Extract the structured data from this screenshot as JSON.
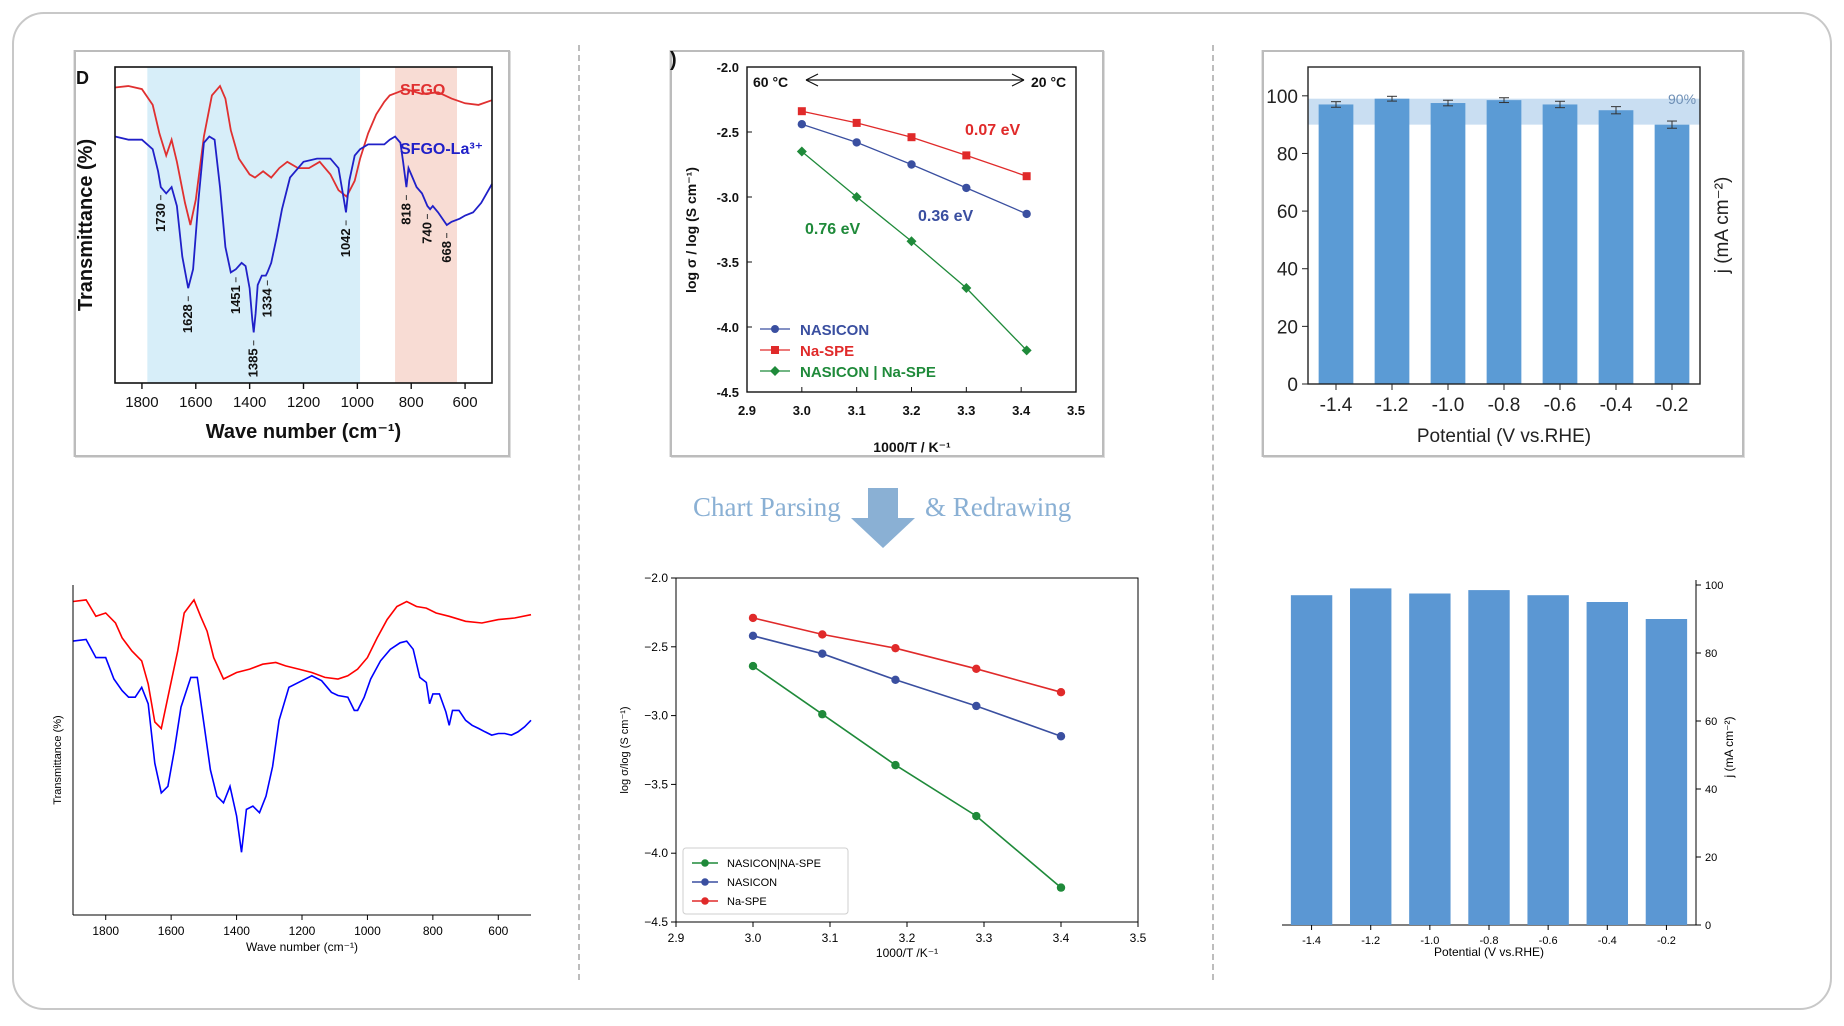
{
  "process": {
    "left_label": "Chart Parsing",
    "right_label": "& Redrawing",
    "arrow_color": "#8ab0d4"
  },
  "chart_data": [
    {
      "id": "ftir-original",
      "type": "line",
      "panel_letter": "D",
      "xlabel": "Wave number (cm⁻¹)",
      "ylabel": "Transmittance (%)",
      "xlim": [
        1900,
        500
      ],
      "xticks": [
        1800,
        1600,
        1400,
        1200,
        1000,
        800,
        600
      ],
      "x_tick_labels": [
        "1800",
        "1600",
        "1400",
        "1200",
        "1000",
        "800",
        "600"
      ],
      "shaded_regions": [
        {
          "range": [
            1780,
            990
          ],
          "color": "#d7eef9"
        },
        {
          "range": [
            860,
            630
          ],
          "color": "#f8dcd4"
        }
      ],
      "series": [
        {
          "name": "SFGO",
          "color": "#e03030",
          "x": [
            1900,
            1850,
            1800,
            1760,
            1735,
            1710,
            1690,
            1670,
            1640,
            1620,
            1600,
            1570,
            1540,
            1510,
            1490,
            1470,
            1440,
            1400,
            1380,
            1350,
            1320,
            1290,
            1260,
            1220,
            1180,
            1140,
            1100,
            1070,
            1040,
            1010,
            990,
            960,
            930,
            900,
            880,
            850,
            820,
            800,
            760,
            700,
            650,
            600,
            550,
            500
          ],
          "y": [
            0.935,
            0.94,
            0.93,
            0.88,
            0.79,
            0.72,
            0.77,
            0.7,
            0.57,
            0.5,
            0.58,
            0.78,
            0.91,
            0.94,
            0.9,
            0.8,
            0.71,
            0.66,
            0.65,
            0.67,
            0.65,
            0.68,
            0.7,
            0.68,
            0.68,
            0.7,
            0.66,
            0.61,
            0.59,
            0.64,
            0.71,
            0.79,
            0.85,
            0.89,
            0.91,
            0.92,
            0.93,
            0.925,
            0.915,
            0.92,
            0.9,
            0.885,
            0.88,
            0.895
          ]
        },
        {
          "name": "SFGO-La³⁺",
          "color": "#2020c8",
          "x": [
            1900,
            1850,
            1800,
            1760,
            1740,
            1730,
            1710,
            1690,
            1670,
            1650,
            1628,
            1610,
            1590,
            1570,
            1550,
            1530,
            1510,
            1490,
            1470,
            1451,
            1430,
            1415,
            1400,
            1390,
            1385,
            1378,
            1370,
            1355,
            1340,
            1334,
            1320,
            1300,
            1280,
            1250,
            1200,
            1150,
            1100,
            1070,
            1050,
            1042,
            1030,
            1010,
            990,
            960,
            930,
            900,
            880,
            860,
            840,
            830,
            818,
            810,
            800,
            780,
            760,
            740,
            730,
            720,
            700,
            680,
            668,
            650,
            620,
            600,
            570,
            540,
            520,
            500
          ],
          "y": [
            0.78,
            0.77,
            0.77,
            0.74,
            0.67,
            0.62,
            0.6,
            0.62,
            0.56,
            0.4,
            0.3,
            0.36,
            0.58,
            0.76,
            0.78,
            0.77,
            0.62,
            0.43,
            0.35,
            0.36,
            0.38,
            0.37,
            0.3,
            0.2,
            0.16,
            0.22,
            0.31,
            0.34,
            0.34,
            0.35,
            0.38,
            0.46,
            0.55,
            0.65,
            0.7,
            0.71,
            0.71,
            0.68,
            0.58,
            0.54,
            0.64,
            0.72,
            0.74,
            0.755,
            0.755,
            0.755,
            0.77,
            0.78,
            0.76,
            0.7,
            0.62,
            0.68,
            0.66,
            0.62,
            0.6,
            0.56,
            0.55,
            0.56,
            0.54,
            0.515,
            0.5,
            0.51,
            0.52,
            0.53,
            0.54,
            0.57,
            0.6,
            0.63
          ]
        }
      ],
      "legend": [
        "SFGO",
        "SFGO-La³⁺"
      ],
      "annotations": [
        {
          "text": "1730",
          "x": 1730,
          "y": 0.62
        },
        {
          "text": "1628",
          "x": 1628,
          "y": 0.3
        },
        {
          "text": "1451",
          "x": 1451,
          "y": 0.36
        },
        {
          "text": "1385",
          "x": 1385,
          "y": 0.16
        },
        {
          "text": "1334",
          "x": 1334,
          "y": 0.35
        },
        {
          "text": "1042",
          "x": 1042,
          "y": 0.54
        },
        {
          "text": "818",
          "x": 818,
          "y": 0.62
        },
        {
          "text": "740",
          "x": 740,
          "y": 0.56
        },
        {
          "text": "668",
          "x": 668,
          "y": 0.5
        }
      ]
    },
    {
      "id": "arrhenius-original",
      "type": "line",
      "panel_letter": ")",
      "xlabel": "1000/T / K⁻¹",
      "ylabel": "log σ / log (S cm⁻¹)",
      "xlim": [
        2.9,
        3.5
      ],
      "ylim": [
        -4.5,
        -2.0
      ],
      "xticks": [
        2.9,
        3.0,
        3.1,
        3.2,
        3.3,
        3.4,
        3.5
      ],
      "x_tick_labels": [
        "2.9",
        "3.0",
        "3.1",
        "3.2",
        "3.3",
        "3.4",
        "3.5"
      ],
      "yticks": [
        -2.0,
        -2.5,
        -3.0,
        -3.5,
        -4.0,
        -4.5
      ],
      "y_tick_labels": [
        "-2.0",
        "-2.5",
        "-3.0",
        "-3.5",
        "-4.0",
        "-4.5"
      ],
      "top_label_left": "60 °C",
      "top_label_right": "20 °C",
      "series": [
        {
          "name": "NASICON",
          "color": "#3a4fa0",
          "marker": "circle",
          "x": [
            3.0,
            3.1,
            3.2,
            3.3,
            3.41
          ],
          "y": [
            -2.44,
            -2.58,
            -2.75,
            -2.93,
            -3.13
          ]
        },
        {
          "name": "Na-SPE",
          "color": "#e02a2a",
          "marker": "square",
          "x": [
            3.0,
            3.1,
            3.2,
            3.3,
            3.41
          ],
          "y": [
            -2.34,
            -2.43,
            -2.54,
            -2.68,
            -2.84
          ]
        },
        {
          "name": "NASICON | Na-SPE",
          "color": "#1f8a3a",
          "marker": "diamond",
          "x": [
            3.0,
            3.1,
            3.2,
            3.3,
            3.41
          ],
          "y": [
            -2.65,
            -3.0,
            -3.34,
            -3.7,
            -4.18
          ]
        }
      ],
      "legend": [
        "NASICON",
        "Na-SPE",
        "NASICON | Na-SPE"
      ],
      "annotations": [
        {
          "text": "0.07 eV",
          "color": "#e02a2a"
        },
        {
          "text": "0.36 eV",
          "color": "#3a4fa0"
        },
        {
          "text": "0.76 eV",
          "color": "#1f8a3a"
        }
      ]
    },
    {
      "id": "bar-original",
      "type": "bar",
      "xlabel": "Potential (V vs.RHE)",
      "ylabel": "j (mA cm⁻²)",
      "categories": [
        "-1.4",
        "-1.2",
        "-1.0",
        "-0.8",
        "-0.6",
        "-0.4",
        "-0.2"
      ],
      "values": [
        97,
        99,
        97.5,
        98.5,
        97,
        95,
        90
      ],
      "errors": [
        0.7,
        0.6,
        0.7,
        0.6,
        0.8,
        0.9,
        0.9
      ],
      "ylim": [
        0,
        110
      ],
      "yticks": [
        0,
        20,
        40,
        60,
        80,
        100
      ],
      "y_tick_labels": [
        "0",
        "20",
        "40",
        "60",
        "80",
        "100"
      ],
      "reference_band_label": "90%",
      "bar_color": "#5b9bd5"
    },
    {
      "id": "ftir-redrawn",
      "type": "line",
      "xlabel": "Wave number (cm⁻¹)",
      "ylabel": "Transmittance (%)",
      "xlim": [
        1900,
        500
      ],
      "xticks": [
        1800,
        1600,
        1400,
        1200,
        1000,
        800,
        600
      ],
      "x_tick_labels": [
        "1800",
        "1600",
        "1400",
        "1200",
        "1000",
        "800",
        "600"
      ],
      "series": [
        {
          "name": "SFGO",
          "color": "#ff0000",
          "x": [
            1900,
            1860,
            1830,
            1800,
            1770,
            1750,
            1720,
            1690,
            1670,
            1650,
            1630,
            1610,
            1580,
            1560,
            1530,
            1510,
            1490,
            1470,
            1440,
            1400,
            1360,
            1320,
            1280,
            1250,
            1210,
            1170,
            1130,
            1090,
            1060,
            1030,
            1000,
            970,
            940,
            910,
            880,
            850,
            820,
            790,
            750,
            700,
            650,
            600,
            550,
            500
          ],
          "y": [
            0.95,
            0.955,
            0.905,
            0.915,
            0.885,
            0.84,
            0.8,
            0.77,
            0.7,
            0.585,
            0.565,
            0.66,
            0.8,
            0.915,
            0.955,
            0.905,
            0.86,
            0.78,
            0.715,
            0.735,
            0.745,
            0.76,
            0.765,
            0.755,
            0.745,
            0.735,
            0.72,
            0.715,
            0.725,
            0.745,
            0.78,
            0.84,
            0.895,
            0.935,
            0.95,
            0.935,
            0.93,
            0.915,
            0.905,
            0.89,
            0.885,
            0.895,
            0.9,
            0.91
          ]
        },
        {
          "name": "SFGO-La³⁺",
          "color": "#0000ff",
          "x": [
            1900,
            1860,
            1830,
            1800,
            1775,
            1750,
            1730,
            1710,
            1690,
            1670,
            1650,
            1630,
            1610,
            1590,
            1570,
            1540,
            1520,
            1500,
            1480,
            1460,
            1440,
            1420,
            1400,
            1385,
            1370,
            1350,
            1330,
            1310,
            1290,
            1270,
            1240,
            1200,
            1170,
            1140,
            1110,
            1090,
            1060,
            1040,
            1030,
            1010,
            990,
            960,
            930,
            900,
            880,
            860,
            840,
            820,
            810,
            800,
            780,
            760,
            750,
            740,
            720,
            700,
            680,
            660,
            640,
            620,
            600,
            580,
            560,
            540,
            520,
            500
          ],
          "y": [
            0.83,
            0.835,
            0.78,
            0.78,
            0.715,
            0.68,
            0.66,
            0.66,
            0.69,
            0.64,
            0.46,
            0.37,
            0.39,
            0.5,
            0.63,
            0.72,
            0.72,
            0.58,
            0.44,
            0.36,
            0.34,
            0.39,
            0.3,
            0.19,
            0.32,
            0.33,
            0.31,
            0.36,
            0.45,
            0.59,
            0.69,
            0.71,
            0.725,
            0.71,
            0.675,
            0.665,
            0.66,
            0.62,
            0.62,
            0.66,
            0.715,
            0.77,
            0.805,
            0.825,
            0.83,
            0.805,
            0.72,
            0.705,
            0.64,
            0.67,
            0.67,
            0.615,
            0.575,
            0.62,
            0.62,
            0.59,
            0.575,
            0.565,
            0.555,
            0.545,
            0.55,
            0.55,
            0.545,
            0.555,
            0.57,
            0.59
          ]
        }
      ]
    },
    {
      "id": "arrhenius-redrawn",
      "type": "line",
      "xlabel": "1000/T /K⁻¹",
      "ylabel": "log σ/log (S cm⁻¹)",
      "xlim": [
        2.9,
        3.5
      ],
      "ylim": [
        -4.5,
        -2.0
      ],
      "xticks": [
        2.9,
        3.0,
        3.1,
        3.2,
        3.3,
        3.4,
        3.5
      ],
      "x_tick_labels": [
        "2.9",
        "3.0",
        "3.1",
        "3.2",
        "3.3",
        "3.4",
        "3.5"
      ],
      "yticks": [
        -2.0,
        -2.5,
        -3.0,
        -3.5,
        -4.0,
        -4.5
      ],
      "y_tick_labels": [
        "−2.0",
        "−2.5",
        "−3.0",
        "−3.5",
        "−4.0",
        "−4.5"
      ],
      "series": [
        {
          "name": "NASICON|NA-SPE",
          "color": "#1f8a3a",
          "x": [
            3.0,
            3.09,
            3.185,
            3.29,
            3.4
          ],
          "y": [
            -2.64,
            -2.99,
            -3.36,
            -3.73,
            -4.25
          ]
        },
        {
          "name": "NASICON",
          "color": "#3a4fa0",
          "x": [
            3.0,
            3.09,
            3.185,
            3.29,
            3.4
          ],
          "y": [
            -2.42,
            -2.55,
            -2.74,
            -2.93,
            -3.15
          ]
        },
        {
          "name": "Na-SPE",
          "color": "#e02a2a",
          "x": [
            3.0,
            3.09,
            3.185,
            3.29,
            3.4
          ],
          "y": [
            -2.29,
            -2.41,
            -2.51,
            -2.66,
            -2.83
          ]
        }
      ],
      "legend": [
        "NASICON|NA-SPE",
        "NASICON",
        "Na-SPE"
      ]
    },
    {
      "id": "bar-redrawn",
      "type": "bar",
      "xlabel": "Potential (V vs.RHE)",
      "ylabel": "j (mA cm⁻²)",
      "categories": [
        "-1.4",
        "-1.2",
        "-1.0",
        "-0.8",
        "-0.6",
        "-0.4",
        "-0.2"
      ],
      "values": [
        97,
        99,
        97.5,
        98.5,
        97,
        95,
        90
      ],
      "ylim": [
        0,
        100
      ],
      "yticks": [
        0,
        20,
        40,
        60,
        80,
        100
      ],
      "y_tick_labels": [
        "0",
        "20",
        "40",
        "60",
        "80",
        "100"
      ],
      "bar_color": "#5b97d3"
    }
  ]
}
